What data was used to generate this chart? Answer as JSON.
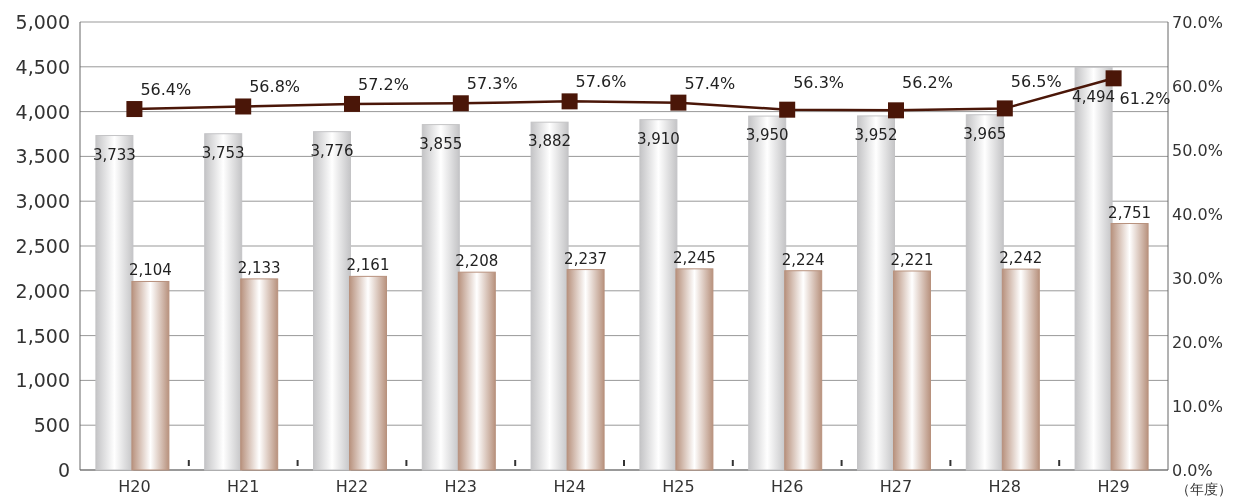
{
  "chart_data": {
    "type": "bar",
    "xlabel": "（年度）",
    "categories": [
      "H20",
      "H21",
      "H22",
      "H23",
      "H24",
      "H25",
      "H26",
      "H27",
      "H28",
      "H29"
    ],
    "series": [
      {
        "color": "#c4c4c6",
        "values": [
          3733,
          3753,
          3776,
          3855,
          3882,
          3910,
          3950,
          3952,
          3965,
          4494
        ],
        "value_labels": [
          "3,733",
          "3,753",
          "3,776",
          "3,855",
          "3,882",
          "3,910",
          "3,950",
          "3,952",
          "3,965",
          "4,494"
        ]
      },
      {
        "color": "#b8927e",
        "values": [
          2104,
          2133,
          2161,
          2208,
          2237,
          2245,
          2224,
          2221,
          2242,
          2751
        ],
        "value_labels": [
          "2,104",
          "2,133",
          "2,161",
          "2,208",
          "2,237",
          "2,245",
          "2,224",
          "2,221",
          "2,242",
          "2,751"
        ]
      },
      {
        "type": "line",
        "axis": "y2",
        "color": "#4a1608",
        "marker": "square",
        "line_style": "solid",
        "values": [
          56.4,
          56.8,
          57.2,
          57.3,
          57.6,
          57.4,
          56.3,
          56.2,
          56.5,
          61.2
        ],
        "value_labels": [
          "56.4%",
          "56.8%",
          "57.2%",
          "57.3%",
          "57.6%",
          "57.4%",
          "56.3%",
          "56.2%",
          "56.5%",
          "61.2%"
        ]
      }
    ],
    "ylim": [
      0,
      5000
    ],
    "yticks": [
      {
        "value": 0,
        "label": "0"
      },
      {
        "value": 500,
        "label": "500"
      },
      {
        "value": 1000,
        "label": "1,000"
      },
      {
        "value": 1500,
        "label": "1,500"
      },
      {
        "value": 2000,
        "label": "2,000"
      },
      {
        "value": 2500,
        "label": "2,500"
      },
      {
        "value": 3000,
        "label": "3,000"
      },
      {
        "value": 3500,
        "label": "3,500"
      },
      {
        "value": 4000,
        "label": "4,000"
      },
      {
        "value": 4500,
        "label": "4,500"
      },
      {
        "value": 5000,
        "label": "5,000"
      }
    ],
    "y2lim": [
      0,
      70
    ],
    "y2ticks": [
      {
        "value": 0,
        "label": "0.0%"
      },
      {
        "value": 10,
        "label": "10.0%"
      },
      {
        "value": 20,
        "label": "20.0%"
      },
      {
        "value": 30,
        "label": "30.0%"
      },
      {
        "value": 40,
        "label": "40.0%"
      },
      {
        "value": 50,
        "label": "50.0%"
      },
      {
        "value": 60,
        "label": "60.0%"
      },
      {
        "value": 70,
        "label": "70.0%"
      }
    ],
    "grid": "y"
  }
}
